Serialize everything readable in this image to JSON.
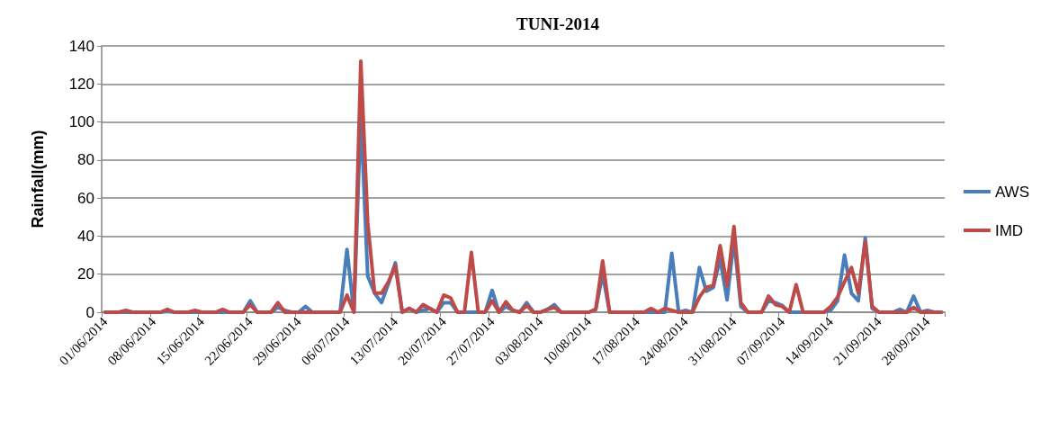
{
  "chart_data": {
    "type": "line",
    "title": "TUNI-2014",
    "ylabel": "Rainfall(mm)",
    "categories": [
      "01/06/2014",
      null,
      null,
      null,
      null,
      null,
      null,
      "08/06/2014",
      null,
      null,
      null,
      null,
      null,
      null,
      "15/06/2014",
      null,
      null,
      null,
      null,
      null,
      null,
      "22/06/2014",
      null,
      null,
      null,
      null,
      null,
      null,
      "29/06/2014",
      null,
      null,
      null,
      null,
      null,
      null,
      "06/07/2014",
      null,
      null,
      null,
      null,
      null,
      null,
      "13/07/2014",
      null,
      null,
      null,
      null,
      null,
      null,
      "20/07/2014",
      null,
      null,
      null,
      null,
      null,
      null,
      "27/07/2014",
      null,
      null,
      null,
      null,
      null,
      null,
      "03/08/2014",
      null,
      null,
      null,
      null,
      null,
      null,
      "10/08/2014",
      null,
      null,
      null,
      null,
      null,
      null,
      "17/08/2014",
      null,
      null,
      null,
      null,
      null,
      null,
      "24/08/2014",
      null,
      null,
      null,
      null,
      null,
      null,
      "31/08/2014",
      null,
      null,
      null,
      null,
      null,
      null,
      "07/09/2014",
      null,
      null,
      null,
      null,
      null,
      null,
      "14/09/2014",
      null,
      null,
      null,
      null,
      null,
      null,
      "21/09/2014",
      null,
      null,
      null,
      null,
      null,
      null,
      "28/09/2014",
      null,
      null
    ],
    "series": [
      {
        "name": "AWS",
        "color": "#4a7ebb",
        "values": [
          0,
          0,
          0,
          0,
          0,
          0,
          0,
          0,
          0,
          0.5,
          0,
          0,
          0,
          0,
          0,
          0,
          0,
          0,
          0,
          0,
          0,
          6,
          0,
          0,
          0,
          2.5,
          1,
          0,
          0,
          3,
          0,
          0,
          0,
          0,
          0,
          33,
          0,
          104,
          19,
          10,
          5,
          15,
          26,
          0,
          2,
          0,
          null,
          2,
          0,
          5,
          5,
          0,
          0,
          null,
          0,
          0,
          11.5,
          0,
          3,
          1,
          0,
          5,
          0,
          0,
          1.5,
          4,
          0,
          0,
          0,
          0,
          0,
          1.5,
          20,
          0,
          0,
          0,
          0,
          0,
          0,
          0,
          0,
          0,
          31,
          0,
          1,
          0,
          23.5,
          11,
          13,
          28,
          6.5,
          38,
          3,
          0,
          0,
          0,
          6,
          5,
          3.5,
          0,
          null,
          0,
          0,
          0,
          0,
          1,
          6,
          30,
          10,
          6,
          39,
          2,
          0,
          0,
          0,
          1.5,
          0,
          8.5,
          0,
          1,
          0,
          0
        ]
      },
      {
        "name": "IMD",
        "color": "#be4b48",
        "values": [
          0,
          0,
          0,
          1,
          0,
          0,
          0,
          0,
          0,
          1.5,
          0,
          0,
          0,
          1,
          0,
          0,
          0,
          1.5,
          0,
          0,
          0,
          4,
          0,
          0,
          0,
          5,
          0,
          0,
          0,
          0,
          0,
          0,
          0,
          0,
          0,
          9,
          0,
          132,
          47,
          10,
          10,
          16,
          24.5,
          0,
          2,
          0,
          4,
          2,
          0,
          9,
          7.5,
          0,
          0,
          31.5,
          0,
          0,
          6,
          0,
          5.5,
          1,
          0,
          3.5,
          0,
          0,
          1.5,
          2.5,
          0,
          0,
          0,
          0,
          0,
          1.5,
          27,
          0,
          0,
          0,
          0,
          0,
          0,
          2,
          0,
          2,
          1,
          0,
          0,
          0,
          8,
          13,
          14,
          35,
          14,
          45,
          5,
          0,
          0,
          0,
          8.5,
          4,
          3,
          0,
          14.5,
          0,
          0,
          0,
          0,
          3,
          8,
          16,
          23.5,
          10,
          37,
          3,
          0,
          0,
          0,
          0,
          0,
          2.5,
          0,
          0,
          0,
          0
        ]
      }
    ],
    "ylim": [
      0,
      140
    ],
    "yticks": [
      0,
      20,
      40,
      60,
      80,
      100,
      120,
      140
    ],
    "grid": "y",
    "legend": "right",
    "marker": "none",
    "line_style": "solid"
  }
}
